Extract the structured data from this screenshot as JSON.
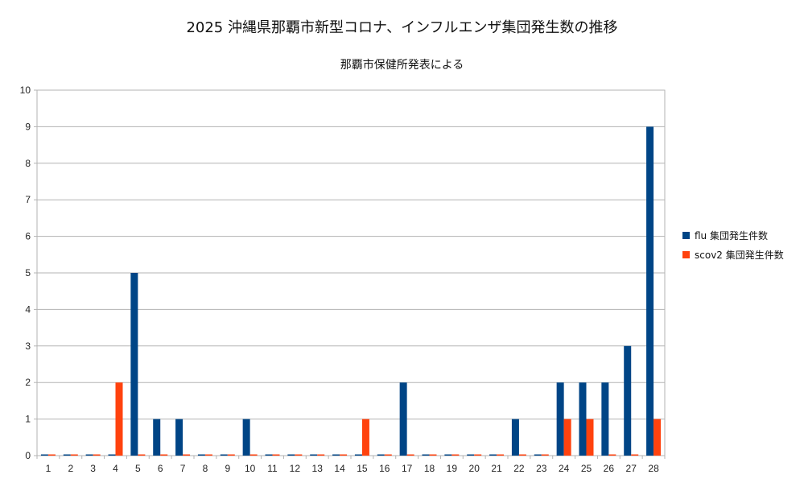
{
  "chart_data": {
    "type": "bar",
    "title": "2025  沖縄県那覇市新型コロナ、インフルエンザ集団発生数の推移",
    "subtitle": "那覇市保健所発表による",
    "categories": [
      "1",
      "2",
      "3",
      "4",
      "5",
      "6",
      "7",
      "8",
      "9",
      "10",
      "11",
      "12",
      "13",
      "14",
      "15",
      "16",
      "17",
      "18",
      "19",
      "20",
      "21",
      "22",
      "23",
      "24",
      "25",
      "26",
      "27",
      "28"
    ],
    "series": [
      {
        "name": "flu 集団発生件数",
        "color": "#004586",
        "values": [
          0,
          0,
          0,
          0,
          5,
          1,
          1,
          0,
          0,
          1,
          0,
          0,
          0,
          0,
          0,
          0,
          2,
          0,
          0,
          0,
          0,
          1,
          0,
          2,
          2,
          2,
          3,
          9
        ]
      },
      {
        "name": "scov2 集団発生件数",
        "color": "#ff420e",
        "values": [
          0,
          0,
          0,
          2,
          0,
          0,
          0,
          0,
          0,
          0,
          0,
          0,
          0,
          0,
          1,
          0,
          0,
          0,
          0,
          0,
          0,
          0,
          0,
          1,
          1,
          0,
          0,
          1
        ]
      }
    ],
    "ylim": [
      0,
      10
    ],
    "yticks": [
      0,
      1,
      2,
      3,
      4,
      5,
      6,
      7,
      8,
      9,
      10
    ],
    "grid": true,
    "legend_position": "right"
  }
}
